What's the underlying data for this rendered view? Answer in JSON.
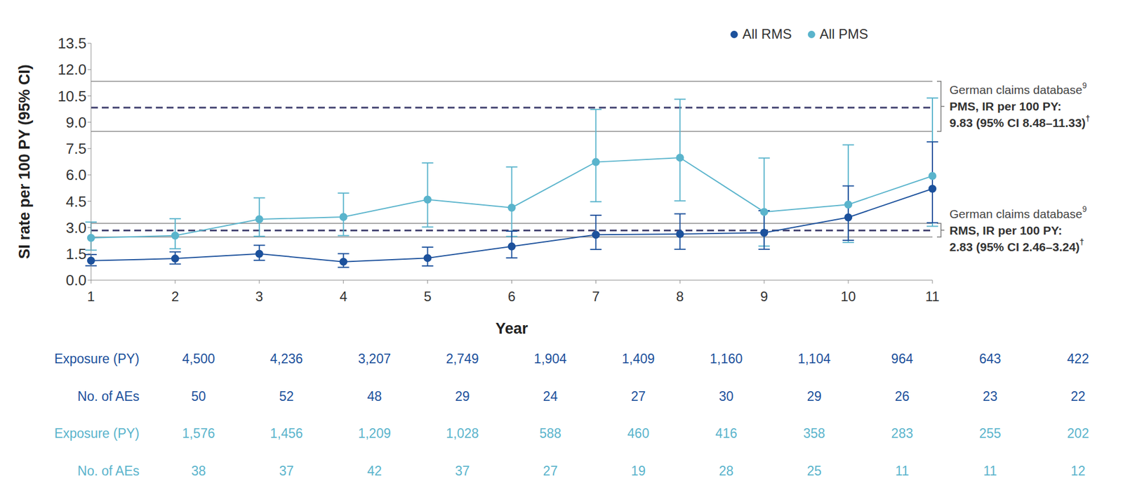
{
  "chart_data": {
    "type": "line",
    "y_label": "SI rate per 100 PY (95% CI)",
    "x_label": "Year",
    "categories": [
      1,
      2,
      3,
      4,
      5,
      6,
      7,
      8,
      9,
      10,
      11
    ],
    "ylim": [
      0,
      13.5
    ],
    "yticks": [
      {
        "value": 0,
        "label": "0.0"
      },
      1.5,
      {
        "value": 3,
        "label": "3.0"
      },
      4.5,
      {
        "value": 6,
        "label": "6.0"
      },
      7.5,
      {
        "value": 9,
        "label": "9.0"
      },
      10.5,
      {
        "value": 12,
        "label": "12.0"
      },
      13.5
    ],
    "grid": false,
    "legend": "upper right",
    "series": [
      {
        "name": "All RMS",
        "color": "#1c519c",
        "marker": "circle",
        "values": [
          1.11,
          1.23,
          1.5,
          1.05,
          1.26,
          1.92,
          2.59,
          2.63,
          2.7,
          3.58,
          5.21
        ],
        "ci_low": [
          0.82,
          0.92,
          1.13,
          0.73,
          0.81,
          1.27,
          1.75,
          1.76,
          1.76,
          2.27,
          3.27
        ],
        "ci_high": [
          1.46,
          1.61,
          1.99,
          1.51,
          1.88,
          2.79,
          3.7,
          3.78,
          3.96,
          5.37,
          7.88
        ]
      },
      {
        "name": "All PMS",
        "color": "#5ab4cc",
        "marker": "circle",
        "values": [
          2.41,
          2.54,
          3.47,
          3.6,
          4.59,
          4.13,
          6.73,
          6.98,
          3.89,
          4.31,
          5.94
        ],
        "ci_low": [
          1.71,
          1.79,
          2.5,
          2.54,
          3.03,
          2.49,
          4.47,
          4.52,
          1.94,
          2.15,
          3.07
        ],
        "ci_high": [
          3.31,
          3.5,
          4.69,
          4.96,
          6.68,
          6.45,
          9.73,
          10.31,
          6.96,
          7.71,
          10.38
        ]
      }
    ],
    "reference_lines": [
      {
        "value": 9.83,
        "ci_low": 8.48,
        "ci_high": 11.33,
        "line_style": "dashed",
        "label": [
          {
            "text": "German claims database",
            "sup": "9"
          },
          {
            "text": "PMS, IR per 100 PY:"
          },
          {
            "text": "9.83 (95% CI 8.48–11.33)",
            "sup": "†"
          }
        ]
      },
      {
        "value": 2.83,
        "ci_low": 2.46,
        "ci_high": 3.24,
        "line_style": "dashed",
        "label": [
          {
            "text": "German claims database",
            "sup": "9"
          },
          {
            "text": "RMS, IR per 100 PY:"
          },
          {
            "text": "2.83 (95% CI 2.46–3.24)",
            "sup": "†"
          }
        ]
      }
    ],
    "table": {
      "rows": [
        {
          "label": "Exposure (PY)",
          "series": "All RMS",
          "values": [
            4500,
            4236,
            3207,
            2749,
            1904,
            1409,
            1160,
            1104,
            964,
            643,
            422
          ],
          "value_labels": [
            "4,500",
            "4,236",
            "3,207",
            "2,749",
            "1,904",
            "1,409",
            "1,160",
            "1,104",
            "964",
            "643",
            "422"
          ]
        },
        {
          "label": "No. of AEs",
          "series": "All RMS",
          "values": [
            50,
            52,
            48,
            29,
            24,
            27,
            30,
            29,
            26,
            23,
            22
          ]
        },
        {
          "label": "Exposure (PY)",
          "series": "All PMS",
          "values": [
            1576,
            1456,
            1209,
            1028,
            588,
            460,
            416,
            358,
            283,
            255,
            202
          ],
          "value_labels": [
            "1,576",
            "1,456",
            "1,209",
            "1,028",
            "588",
            "460",
            "416",
            "358",
            "283",
            "255",
            "202"
          ]
        },
        {
          "label": "No. of AEs",
          "series": "All PMS",
          "values": [
            38,
            37,
            42,
            37,
            27,
            19,
            28,
            25,
            11,
            11,
            12
          ]
        }
      ]
    }
  }
}
